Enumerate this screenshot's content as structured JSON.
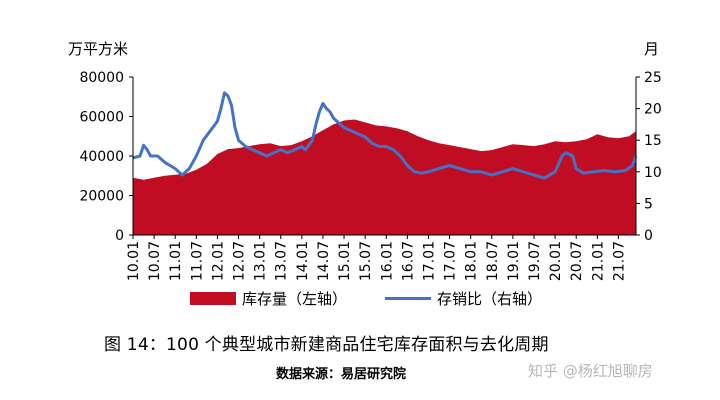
{
  "chart_data": {
    "type": "area+line",
    "left_unit": "万平方米",
    "right_unit": "月",
    "left_axis": {
      "min": 0,
      "max": 80000,
      "ticks": [
        0,
        20000,
        40000,
        60000,
        80000
      ]
    },
    "right_axis": {
      "min": 0,
      "max": 25,
      "ticks": [
        0,
        5,
        10,
        15,
        20,
        25
      ]
    },
    "x_tick_labels": [
      "10.01",
      "10.07",
      "11.01",
      "11.07",
      "12.01",
      "12.07",
      "13.01",
      "13.07",
      "14.01",
      "14.07",
      "15.01",
      "15.07",
      "16.01",
      "16.07",
      "17.01",
      "17.07",
      "18.01",
      "18.07",
      "19.01",
      "19.07",
      "20.01",
      "20.07",
      "21.01",
      "21.07"
    ],
    "x_start": "2010-01",
    "x_end": "2021-12",
    "series": [
      {
        "name": "库存量（左轴）",
        "axis": "left",
        "type": "area",
        "color": "#c00d24",
        "points": [
          [
            "2010-01",
            29000
          ],
          [
            "2010-04",
            28000
          ],
          [
            "2010-07",
            29000
          ],
          [
            "2010-10",
            30000
          ],
          [
            "2011-01",
            30500
          ],
          [
            "2011-04",
            31000
          ],
          [
            "2011-07",
            33000
          ],
          [
            "2011-10",
            36000
          ],
          [
            "2012-01",
            41000
          ],
          [
            "2012-04",
            43500
          ],
          [
            "2012-07",
            44000
          ],
          [
            "2012-10",
            45000
          ],
          [
            "2013-01",
            46000
          ],
          [
            "2013-04",
            46500
          ],
          [
            "2013-07",
            45000
          ],
          [
            "2013-10",
            45500
          ],
          [
            "2014-01",
            47500
          ],
          [
            "2014-04",
            50000
          ],
          [
            "2014-07",
            53000
          ],
          [
            "2014-10",
            56000
          ],
          [
            "2015-01",
            58000
          ],
          [
            "2015-04",
            58500
          ],
          [
            "2015-07",
            57000
          ],
          [
            "2015-10",
            55500
          ],
          [
            "2016-01",
            55000
          ],
          [
            "2016-04",
            54000
          ],
          [
            "2016-07",
            52500
          ],
          [
            "2016-10",
            50000
          ],
          [
            "2017-01",
            48000
          ],
          [
            "2017-04",
            46500
          ],
          [
            "2017-07",
            45500
          ],
          [
            "2017-10",
            44500
          ],
          [
            "2018-01",
            43500
          ],
          [
            "2018-04",
            42500
          ],
          [
            "2018-07",
            43000
          ],
          [
            "2018-10",
            44500
          ],
          [
            "2019-01",
            46000
          ],
          [
            "2019-04",
            45500
          ],
          [
            "2019-07",
            45000
          ],
          [
            "2019-10",
            46000
          ],
          [
            "2020-01",
            47500
          ],
          [
            "2020-04",
            47000
          ],
          [
            "2020-07",
            47500
          ],
          [
            "2020-10",
            48500
          ],
          [
            "2021-01",
            51000
          ],
          [
            "2021-04",
            49500
          ],
          [
            "2021-07",
            49000
          ],
          [
            "2021-10",
            50000
          ],
          [
            "2021-12",
            52500
          ]
        ]
      },
      {
        "name": "存销比（右轴）",
        "axis": "right",
        "type": "line",
        "color": "#4472c4",
        "points": [
          [
            "2010-01",
            12.2
          ],
          [
            "2010-03",
            12.5
          ],
          [
            "2010-04",
            14.2
          ],
          [
            "2010-05",
            13.5
          ],
          [
            "2010-06",
            12.5
          ],
          [
            "2010-08",
            12.5
          ],
          [
            "2010-10",
            11.5
          ],
          [
            "2011-01",
            10.5
          ],
          [
            "2011-03",
            9.5
          ],
          [
            "2011-05",
            10.5
          ],
          [
            "2011-07",
            12.5
          ],
          [
            "2011-09",
            15.0
          ],
          [
            "2011-11",
            16.5
          ],
          [
            "2012-01",
            18.0
          ],
          [
            "2012-02",
            20.0
          ],
          [
            "2012-03",
            22.5
          ],
          [
            "2012-04",
            22.0
          ],
          [
            "2012-05",
            20.5
          ],
          [
            "2012-06",
            17.0
          ],
          [
            "2012-07",
            15.0
          ],
          [
            "2012-09",
            14.0
          ],
          [
            "2012-11",
            13.5
          ],
          [
            "2013-01",
            13.0
          ],
          [
            "2013-03",
            12.5
          ],
          [
            "2013-05",
            13.0
          ],
          [
            "2013-07",
            13.5
          ],
          [
            "2013-09",
            13.0
          ],
          [
            "2013-11",
            13.5
          ],
          [
            "2014-01",
            14.0
          ],
          [
            "2014-02",
            13.5
          ],
          [
            "2014-04",
            15.0
          ],
          [
            "2014-05",
            17.5
          ],
          [
            "2014-06",
            19.5
          ],
          [
            "2014-07",
            20.8
          ],
          [
            "2014-08",
            20.0
          ],
          [
            "2014-09",
            19.5
          ],
          [
            "2014-10",
            18.5
          ],
          [
            "2015-01",
            17.0
          ],
          [
            "2015-03",
            16.5
          ],
          [
            "2015-05",
            16.0
          ],
          [
            "2015-07",
            15.5
          ],
          [
            "2015-09",
            14.5
          ],
          [
            "2015-11",
            14.0
          ],
          [
            "2016-01",
            14.0
          ],
          [
            "2016-03",
            13.5
          ],
          [
            "2016-05",
            12.5
          ],
          [
            "2016-07",
            11.0
          ],
          [
            "2016-09",
            10.0
          ],
          [
            "2016-11",
            9.8
          ],
          [
            "2017-01",
            10.0
          ],
          [
            "2017-04",
            10.5
          ],
          [
            "2017-07",
            11.0
          ],
          [
            "2017-10",
            10.5
          ],
          [
            "2018-01",
            10.0
          ],
          [
            "2018-04",
            10.0
          ],
          [
            "2018-07",
            9.5
          ],
          [
            "2018-10",
            10.0
          ],
          [
            "2019-01",
            10.5
          ],
          [
            "2019-04",
            10.0
          ],
          [
            "2019-07",
            9.5
          ],
          [
            "2019-10",
            9.0
          ],
          [
            "2020-01",
            10.0
          ],
          [
            "2020-03",
            12.5
          ],
          [
            "2020-04",
            13.0
          ],
          [
            "2020-06",
            12.5
          ],
          [
            "2020-07",
            10.5
          ],
          [
            "2020-09",
            9.8
          ],
          [
            "2020-12",
            10.0
          ],
          [
            "2021-03",
            10.2
          ],
          [
            "2021-06",
            10.0
          ],
          [
            "2021-09",
            10.2
          ],
          [
            "2021-11",
            11.0
          ],
          [
            "2021-12",
            12.5
          ]
        ]
      }
    ]
  },
  "legend": {
    "area_label": "库存量（左轴）",
    "line_label": "存销比（右轴）"
  },
  "caption": "图 14：100 个典型城市新建商品住宅库存面积与去化周期",
  "source": "数据来源：易居研究院",
  "watermark": "知乎 @杨红旭聊房"
}
